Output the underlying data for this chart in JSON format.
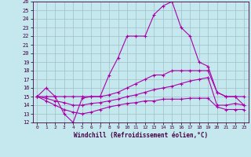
{
  "xlabel": "Windchill (Refroidissement éolien,°C)",
  "xlim": [
    -0.5,
    23.5
  ],
  "ylim": [
    12,
    26
  ],
  "xticks": [
    0,
    1,
    2,
    3,
    4,
    5,
    6,
    7,
    8,
    9,
    10,
    11,
    12,
    13,
    14,
    15,
    16,
    17,
    18,
    19,
    20,
    21,
    22,
    23
  ],
  "yticks": [
    12,
    13,
    14,
    15,
    16,
    17,
    18,
    19,
    20,
    21,
    22,
    23,
    24,
    25,
    26
  ],
  "background_color": "#c5e8ee",
  "grid_color": "#a0bfc8",
  "line_color": "#aa00aa",
  "series": [
    [
      15.0,
      16.0,
      15.0,
      13.0,
      12.0,
      14.8,
      15.0,
      15.0,
      17.5,
      19.5,
      22.0,
      22.0,
      22.0,
      24.5,
      25.5,
      26.0,
      23.0,
      22.0,
      19.0,
      18.5,
      15.5,
      15.0,
      15.0,
      14.0
    ],
    [
      15.0,
      15.0,
      15.0,
      15.0,
      15.0,
      15.0,
      15.0,
      15.0,
      15.2,
      15.5,
      16.0,
      16.5,
      17.0,
      17.5,
      17.5,
      18.0,
      18.0,
      18.0,
      18.0,
      18.0,
      15.5,
      15.0,
      15.0,
      15.0
    ],
    [
      15.0,
      14.8,
      14.5,
      14.3,
      14.0,
      14.0,
      14.2,
      14.3,
      14.5,
      14.7,
      15.0,
      15.2,
      15.5,
      15.8,
      16.0,
      16.2,
      16.5,
      16.8,
      17.0,
      17.2,
      14.0,
      14.0,
      14.2,
      14.0
    ],
    [
      15.0,
      14.5,
      14.0,
      13.5,
      13.2,
      13.0,
      13.2,
      13.5,
      13.8,
      14.0,
      14.2,
      14.3,
      14.5,
      14.5,
      14.7,
      14.7,
      14.7,
      14.8,
      14.8,
      14.8,
      13.8,
      13.5,
      13.5,
      13.5
    ]
  ]
}
